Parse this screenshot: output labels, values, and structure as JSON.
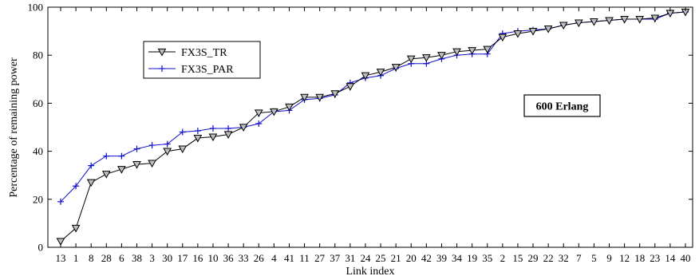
{
  "chart_data": {
    "type": "line",
    "xlabel": "Link index",
    "ylabel": "Percentage of remaining power",
    "ylim": [
      0,
      100
    ],
    "yticks": [
      0,
      20,
      40,
      60,
      80,
      100
    ],
    "categories": [
      "13",
      "1",
      "8",
      "28",
      "6",
      "38",
      "3",
      "30",
      "17",
      "16",
      "10",
      "36",
      "33",
      "26",
      "4",
      "41",
      "11",
      "27",
      "37",
      "31",
      "24",
      "25",
      "21",
      "20",
      "42",
      "39",
      "34",
      "19",
      "35",
      "2",
      "15",
      "29",
      "22",
      "32",
      "7",
      "5",
      "9",
      "12",
      "18",
      "23",
      "14",
      "40"
    ],
    "series": [
      {
        "name": "FX3S_TR",
        "color": "#000000",
        "marker": "triangle-down",
        "values": [
          2.5,
          8,
          27,
          30.5,
          32.5,
          34.5,
          35,
          40,
          41,
          45.5,
          46,
          47,
          50,
          56,
          56.5,
          58.5,
          62.5,
          62.5,
          64,
          67,
          71.5,
          73,
          75,
          78.5,
          79,
          80,
          81.5,
          82,
          82.5,
          87.5,
          89,
          90,
          91,
          92.5,
          93.5,
          94,
          94.5,
          95,
          95,
          95.5,
          97.5,
          98
        ]
      },
      {
        "name": "FX3S_PAR",
        "color": "#1010d0",
        "marker": "plus",
        "values": [
          19,
          25.5,
          34,
          38,
          38,
          41,
          42.5,
          43,
          48,
          48.5,
          49.5,
          49.5,
          50,
          51.5,
          56.5,
          57,
          61.5,
          62,
          63.5,
          68.5,
          70.5,
          71.5,
          74.5,
          76.5,
          76.5,
          78.5,
          80,
          80.5,
          80.5,
          89,
          90,
          90.5,
          91,
          92.5,
          93.5,
          94,
          94.5,
          95,
          95,
          95,
          97.5,
          98
        ]
      }
    ],
    "legend_position": "top-left",
    "annotation": "600 Erlang",
    "grid": false
  }
}
